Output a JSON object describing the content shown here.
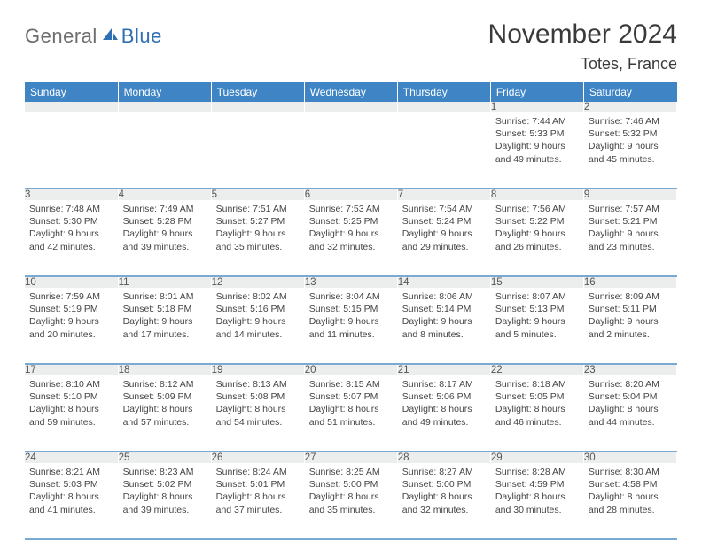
{
  "logo": {
    "general": "General",
    "blue": "Blue"
  },
  "title": "November 2024",
  "location": "Totes, France",
  "colors": {
    "header_bg": "#3f85c6",
    "header_text": "#ffffff",
    "daynum_bg": "#eceded",
    "row_border": "#7aa9d4",
    "logo_gray": "#6d6d6d",
    "logo_blue": "#2f6fb3"
  },
  "weekdays": [
    "Sunday",
    "Monday",
    "Tuesday",
    "Wednesday",
    "Thursday",
    "Friday",
    "Saturday"
  ],
  "weeks": [
    {
      "nums": [
        "",
        "",
        "",
        "",
        "",
        "1",
        "2"
      ],
      "cells": [
        null,
        null,
        null,
        null,
        null,
        {
          "sunrise": "7:44 AM",
          "sunset": "5:33 PM",
          "daylight": "9 hours and 49 minutes."
        },
        {
          "sunrise": "7:46 AM",
          "sunset": "5:32 PM",
          "daylight": "9 hours and 45 minutes."
        }
      ]
    },
    {
      "nums": [
        "3",
        "4",
        "5",
        "6",
        "7",
        "8",
        "9"
      ],
      "cells": [
        {
          "sunrise": "7:48 AM",
          "sunset": "5:30 PM",
          "daylight": "9 hours and 42 minutes."
        },
        {
          "sunrise": "7:49 AM",
          "sunset": "5:28 PM",
          "daylight": "9 hours and 39 minutes."
        },
        {
          "sunrise": "7:51 AM",
          "sunset": "5:27 PM",
          "daylight": "9 hours and 35 minutes."
        },
        {
          "sunrise": "7:53 AM",
          "sunset": "5:25 PM",
          "daylight": "9 hours and 32 minutes."
        },
        {
          "sunrise": "7:54 AM",
          "sunset": "5:24 PM",
          "daylight": "9 hours and 29 minutes."
        },
        {
          "sunrise": "7:56 AM",
          "sunset": "5:22 PM",
          "daylight": "9 hours and 26 minutes."
        },
        {
          "sunrise": "7:57 AM",
          "sunset": "5:21 PM",
          "daylight": "9 hours and 23 minutes."
        }
      ]
    },
    {
      "nums": [
        "10",
        "11",
        "12",
        "13",
        "14",
        "15",
        "16"
      ],
      "cells": [
        {
          "sunrise": "7:59 AM",
          "sunset": "5:19 PM",
          "daylight": "9 hours and 20 minutes."
        },
        {
          "sunrise": "8:01 AM",
          "sunset": "5:18 PM",
          "daylight": "9 hours and 17 minutes."
        },
        {
          "sunrise": "8:02 AM",
          "sunset": "5:16 PM",
          "daylight": "9 hours and 14 minutes."
        },
        {
          "sunrise": "8:04 AM",
          "sunset": "5:15 PM",
          "daylight": "9 hours and 11 minutes."
        },
        {
          "sunrise": "8:06 AM",
          "sunset": "5:14 PM",
          "daylight": "9 hours and 8 minutes."
        },
        {
          "sunrise": "8:07 AM",
          "sunset": "5:13 PM",
          "daylight": "9 hours and 5 minutes."
        },
        {
          "sunrise": "8:09 AM",
          "sunset": "5:11 PM",
          "daylight": "9 hours and 2 minutes."
        }
      ]
    },
    {
      "nums": [
        "17",
        "18",
        "19",
        "20",
        "21",
        "22",
        "23"
      ],
      "cells": [
        {
          "sunrise": "8:10 AM",
          "sunset": "5:10 PM",
          "daylight": "8 hours and 59 minutes."
        },
        {
          "sunrise": "8:12 AM",
          "sunset": "5:09 PM",
          "daylight": "8 hours and 57 minutes."
        },
        {
          "sunrise": "8:13 AM",
          "sunset": "5:08 PM",
          "daylight": "8 hours and 54 minutes."
        },
        {
          "sunrise": "8:15 AM",
          "sunset": "5:07 PM",
          "daylight": "8 hours and 51 minutes."
        },
        {
          "sunrise": "8:17 AM",
          "sunset": "5:06 PM",
          "daylight": "8 hours and 49 minutes."
        },
        {
          "sunrise": "8:18 AM",
          "sunset": "5:05 PM",
          "daylight": "8 hours and 46 minutes."
        },
        {
          "sunrise": "8:20 AM",
          "sunset": "5:04 PM",
          "daylight": "8 hours and 44 minutes."
        }
      ]
    },
    {
      "nums": [
        "24",
        "25",
        "26",
        "27",
        "28",
        "29",
        "30"
      ],
      "cells": [
        {
          "sunrise": "8:21 AM",
          "sunset": "5:03 PM",
          "daylight": "8 hours and 41 minutes."
        },
        {
          "sunrise": "8:23 AM",
          "sunset": "5:02 PM",
          "daylight": "8 hours and 39 minutes."
        },
        {
          "sunrise": "8:24 AM",
          "sunset": "5:01 PM",
          "daylight": "8 hours and 37 minutes."
        },
        {
          "sunrise": "8:25 AM",
          "sunset": "5:00 PM",
          "daylight": "8 hours and 35 minutes."
        },
        {
          "sunrise": "8:27 AM",
          "sunset": "5:00 PM",
          "daylight": "8 hours and 32 minutes."
        },
        {
          "sunrise": "8:28 AM",
          "sunset": "4:59 PM",
          "daylight": "8 hours and 30 minutes."
        },
        {
          "sunrise": "8:30 AM",
          "sunset": "4:58 PM",
          "daylight": "8 hours and 28 minutes."
        }
      ]
    }
  ],
  "labels": {
    "sunrise": "Sunrise:",
    "sunset": "Sunset:",
    "daylight": "Daylight:"
  }
}
